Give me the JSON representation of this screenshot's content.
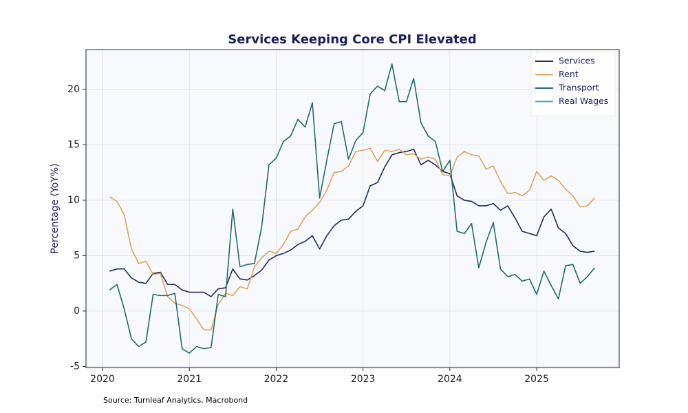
{
  "chart_data": {
    "type": "line",
    "title": "Services Keeping Core CPI Elevated",
    "ylabel": "Percentage (YoY%)",
    "source": "Source: Turnleaf Analytics, Macrobond",
    "xlim": [
      2019.81,
      2025.95
    ],
    "xticks": [
      2020,
      2021,
      2022,
      2023,
      2024,
      2025
    ],
    "ylim": [
      -5.1,
      23.6
    ],
    "yticks": [
      -5,
      0,
      5,
      10,
      15,
      20
    ],
    "grid": true,
    "legend": "upper right",
    "x": [
      2020.083,
      2020.167,
      2020.25,
      2020.333,
      2020.417,
      2020.5,
      2020.583,
      2020.667,
      2020.75,
      2020.833,
      2020.917,
      2021,
      2021.083,
      2021.167,
      2021.25,
      2021.333,
      2021.417,
      2021.5,
      2021.583,
      2021.667,
      2021.75,
      2021.833,
      2021.917,
      2022,
      2022.083,
      2022.167,
      2022.25,
      2022.333,
      2022.417,
      2022.5,
      2022.583,
      2022.667,
      2022.75,
      2022.833,
      2022.917,
      2023,
      2023.083,
      2023.167,
      2023.25,
      2023.333,
      2023.417,
      2023.5,
      2023.583,
      2023.667,
      2023.75,
      2023.833,
      2023.917,
      2024,
      2024.083,
      2024.167,
      2024.25,
      2024.333,
      2024.417,
      2024.5,
      2024.583,
      2024.667,
      2024.75,
      2024.833,
      2024.917,
      2025,
      2025.083,
      2025.167,
      2025.25,
      2025.333,
      2025.417,
      2025.5,
      2025.583,
      2025.667
    ],
    "series": [
      {
        "name": "Services",
        "color": "#1f2a5c",
        "values": [
          3.6,
          3.8,
          3.8,
          3.0,
          2.6,
          2.5,
          3.4,
          3.5,
          2.4,
          2.4,
          1.9,
          1.7,
          1.7,
          1.7,
          1.3,
          2.0,
          2.1,
          3.8,
          2.9,
          2.8,
          3.2,
          3.7,
          4.6,
          5.0,
          5.2,
          5.5,
          6.0,
          6.3,
          6.8,
          5.6,
          6.8,
          7.7,
          8.2,
          8.3,
          9.0,
          9.5,
          11.3,
          11.6,
          13.0,
          14.1,
          14.3,
          14.4,
          14.6,
          13.2,
          13.6,
          13.2,
          12.6,
          12.4,
          10.4,
          10.0,
          9.9,
          9.5,
          9.5,
          9.7,
          9.1,
          9.5,
          8.4,
          7.2,
          7.0,
          6.8,
          8.5,
          9.2,
          7.5,
          7.0,
          5.9,
          5.4,
          5.3,
          5.4
        ]
      },
      {
        "name": "Rent",
        "color": "#e0a35a",
        "values": [
          10.3,
          9.9,
          8.7,
          5.6,
          4.3,
          4.5,
          3.3,
          3.4,
          1.3,
          0.7,
          0.5,
          0.2,
          -0.7,
          -1.7,
          -1.7,
          0.6,
          1.6,
          1.4,
          2.2,
          2.0,
          4.0,
          4.8,
          5.4,
          5.2,
          6.0,
          7.2,
          7.4,
          8.5,
          9.1,
          9.8,
          10.9,
          12.5,
          12.6,
          13.1,
          14.4,
          14.5,
          14.7,
          13.5,
          14.5,
          14.4,
          14.6,
          14.1,
          14.2,
          13.7,
          13.9,
          13.7,
          12.3,
          12.2,
          13.9,
          14.4,
          14.1,
          14.0,
          12.8,
          13.1,
          11.7,
          10.6,
          10.7,
          10.4,
          10.9,
          12.6,
          11.8,
          12.2,
          11.8,
          11.0,
          10.4,
          9.4,
          9.5,
          10.2
        ]
      },
      {
        "name": "Transport",
        "color": "#1e6b6b",
        "values": [
          1.9,
          2.4,
          0.2,
          -2.5,
          -3.2,
          -2.8,
          1.5,
          1.4,
          1.4,
          1.6,
          -3.4,
          -3.8,
          -3.2,
          -3.4,
          -3.3,
          1.5,
          1.3,
          9.2,
          4.0,
          4.2,
          4.3,
          7.6,
          13.2,
          13.8,
          15.3,
          15.8,
          17.3,
          16.6,
          18.8,
          10.2,
          13.6,
          16.9,
          17.1,
          13.7,
          15.4,
          16.1,
          19.6,
          20.3,
          19.9,
          22.3,
          18.9,
          18.9,
          21.0,
          17.0,
          15.8,
          15.3,
          12.6,
          13.6,
          7.2,
          7.0,
          7.9,
          3.9,
          6.2,
          8.0,
          3.8,
          3.1,
          3.3,
          2.7,
          2.9,
          1.5,
          3.6,
          2.3,
          1.1,
          4.1,
          4.2,
          2.5,
          3.1,
          3.9
        ]
      },
      {
        "name": "Real Wages",
        "color": "#5aa0d0",
        "values": [
          null,
          null,
          null,
          null,
          null,
          null,
          null,
          null,
          null,
          null,
          null,
          null,
          null,
          null,
          null,
          null,
          null,
          null,
          null,
          null,
          null,
          null,
          null,
          null,
          null,
          null,
          null,
          null,
          null,
          null,
          null,
          null,
          null,
          null,
          null,
          null,
          null,
          null,
          null,
          null,
          null,
          null,
          null,
          null,
          null,
          null,
          null,
          null,
          null,
          null,
          null,
          null,
          null,
          null,
          null,
          null,
          null,
          null,
          null,
          null,
          null,
          null,
          null,
          null,
          null,
          null,
          null,
          null
        ]
      }
    ]
  }
}
